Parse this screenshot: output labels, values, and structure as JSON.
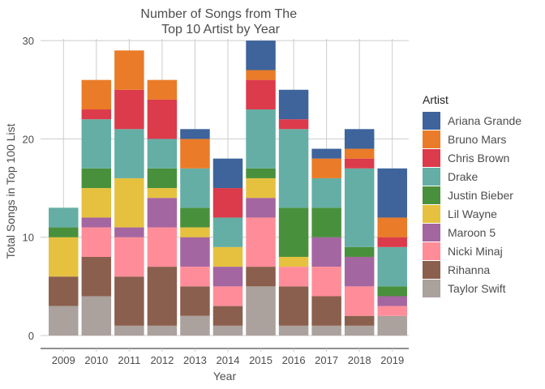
{
  "chart_data": {
    "type": "bar",
    "stacked": true,
    "title": "Number of Songs from The\nTop 10 Artist by Year",
    "xlabel": "Year",
    "ylabel": "Total Songs in Top 100 List",
    "ylim": [
      0,
      31
    ],
    "yticks": [
      0,
      10,
      20,
      30
    ],
    "grid": true,
    "legend_position": "right",
    "legend_title": "Artist",
    "categories": [
      "2009",
      "2010",
      "2011",
      "2012",
      "2013",
      "2014",
      "2015",
      "2016",
      "2017",
      "2018",
      "2019"
    ],
    "series": [
      {
        "name": "Taylor Swift",
        "color": "#aba19d",
        "values": [
          3,
          4,
          1,
          1,
          2,
          1,
          5,
          1,
          1,
          1,
          2
        ]
      },
      {
        "name": "Rihanna",
        "color": "#8b5f4d",
        "values": [
          3,
          4,
          5,
          6,
          3,
          2,
          2,
          4,
          3,
          1,
          0
        ]
      },
      {
        "name": "Nicki Minaj",
        "color": "#ff8d99",
        "values": [
          0,
          3,
          4,
          4,
          2,
          2,
          5,
          2,
          3,
          3,
          1
        ]
      },
      {
        "name": "Maroon 5",
        "color": "#a466a0",
        "values": [
          0,
          1,
          1,
          3,
          3,
          2,
          2,
          0,
          3,
          3,
          1
        ]
      },
      {
        "name": "Lil Wayne",
        "color": "#e6c13f",
        "values": [
          4,
          3,
          5,
          1,
          1,
          2,
          2,
          1,
          0,
          0,
          0
        ]
      },
      {
        "name": "Justin Bieber",
        "color": "#49903c",
        "values": [
          1,
          2,
          0,
          2,
          2,
          0,
          1,
          5,
          3,
          1,
          1
        ]
      },
      {
        "name": "Drake",
        "color": "#65aea6",
        "values": [
          2,
          5,
          5,
          3,
          4,
          3,
          6,
          8,
          3,
          8,
          4
        ]
      },
      {
        "name": "Chris Brown",
        "color": "#db3b4b",
        "values": [
          0,
          1,
          4,
          4,
          0,
          3,
          3,
          1,
          0,
          1,
          1
        ]
      },
      {
        "name": "Bruno Mars",
        "color": "#ea7b28",
        "values": [
          0,
          3,
          4,
          2,
          3,
          0,
          1,
          0,
          2,
          1,
          2
        ]
      },
      {
        "name": "Ariana Grande",
        "color": "#3e649b",
        "values": [
          0,
          0,
          0,
          0,
          1,
          3,
          3,
          3,
          1,
          2,
          5
        ]
      }
    ],
    "legend_order": [
      "Ariana Grande",
      "Bruno Mars",
      "Chris Brown",
      "Drake",
      "Justin Bieber",
      "Lil Wayne",
      "Maroon 5",
      "Nicki Minaj",
      "Rihanna",
      "Taylor Swift"
    ]
  }
}
